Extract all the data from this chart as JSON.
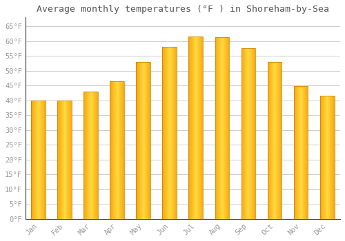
{
  "title": "Average monthly temperatures (°F ) in Shoreham-by-Sea",
  "months": [
    "Jan",
    "Feb",
    "Mar",
    "Apr",
    "May",
    "Jun",
    "Jul",
    "Aug",
    "Sep",
    "Oct",
    "Nov",
    "Dec"
  ],
  "values": [
    39.9,
    39.9,
    43.0,
    46.4,
    52.9,
    58.1,
    61.5,
    61.3,
    57.7,
    52.9,
    44.8,
    41.5
  ],
  "bar_color_center": "#FFD040",
  "bar_color_edge": "#F5A800",
  "background_color": "#FFFFFF",
  "grid_color": "#CCCCCC",
  "text_color": "#999999",
  "title_color": "#555555",
  "spine_color": "#333333",
  "ylim": [
    0,
    68
  ],
  "yticks": [
    0,
    5,
    10,
    15,
    20,
    25,
    30,
    35,
    40,
    45,
    50,
    55,
    60,
    65
  ],
  "ytick_labels": [
    "0°F",
    "5°F",
    "10°F",
    "15°F",
    "20°F",
    "25°F",
    "30°F",
    "35°F",
    "40°F",
    "45°F",
    "50°F",
    "55°F",
    "60°F",
    "65°F"
  ],
  "title_fontsize": 9.5,
  "tick_fontsize": 7.5,
  "font_family": "monospace",
  "bar_width": 0.55
}
